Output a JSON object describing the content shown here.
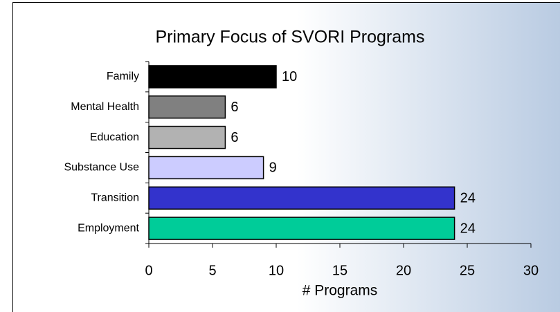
{
  "chart_data": {
    "type": "bar",
    "orientation": "horizontal",
    "title": "Primary Focus of SVORI Programs",
    "xlabel": "# Programs",
    "categories": [
      "Family",
      "Mental Health",
      "Education",
      "Substance Use",
      "Transition",
      "Employment"
    ],
    "values": [
      10,
      6,
      6,
      9,
      24,
      24
    ],
    "colors": [
      "#000000",
      "#808080",
      "#b2b2b2",
      "#ccccff",
      "#3333cc",
      "#00cc99"
    ],
    "xlim": [
      0,
      30
    ],
    "xticks": [
      0,
      5,
      10,
      15,
      20,
      25,
      30
    ],
    "data_labels": true,
    "grid": false
  }
}
